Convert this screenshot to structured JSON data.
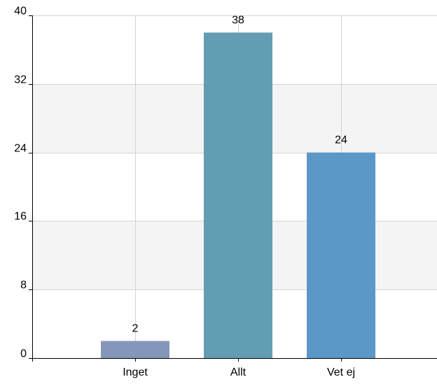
{
  "chart_data": {
    "type": "bar",
    "categories": [
      "Inget",
      "Allt",
      "Vet ej"
    ],
    "values": [
      2,
      38,
      24
    ],
    "bar_colors": [
      "#8597b9",
      "#629db3",
      "#5b98c7"
    ],
    "ylim": [
      0,
      40
    ],
    "yticks": [
      0,
      8,
      16,
      24,
      32,
      40
    ],
    "grid": true,
    "band_color": "#f4f4f5",
    "grid_color": "#d3d3d3",
    "title": "",
    "xlabel": "",
    "ylabel": ""
  }
}
